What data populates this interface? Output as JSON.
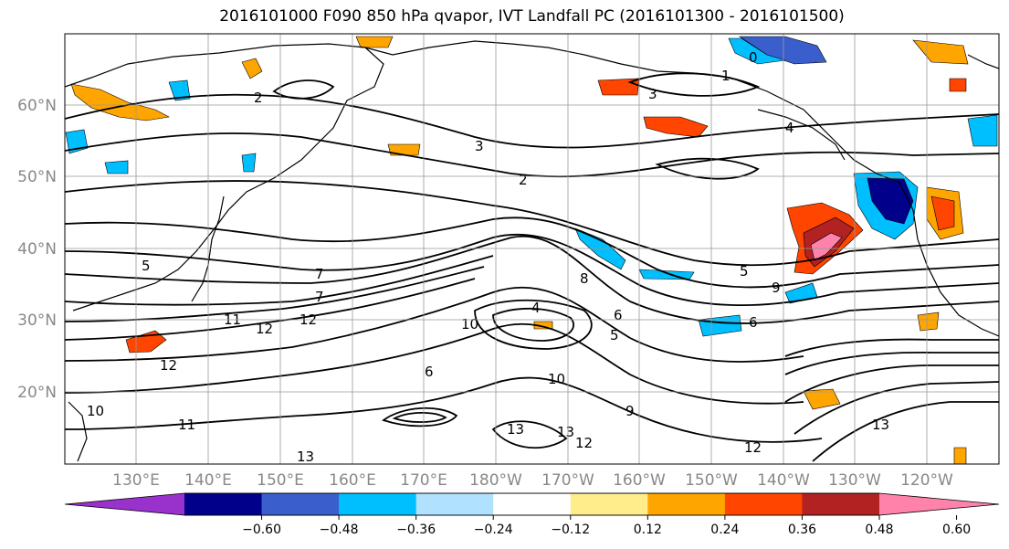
{
  "title": "2016101000 F090 850 hPa qvapor, IVT Landfall PC (2016101300 - 2016101500)",
  "lat_labels": [
    "60°N",
    "50°N",
    "40°N",
    "30°N",
    "20°N"
  ],
  "lon_labels": [
    "130°E",
    "140°E",
    "150°E",
    "160°E",
    "170°E",
    "180°W",
    "170°W",
    "160°W",
    "150°W",
    "140°W",
    "130°W",
    "120°W"
  ],
  "colorbar": {
    "colors": [
      "#9932cc",
      "#00008b",
      "#3a5fcd",
      "#00bfff",
      "#b0e2ff",
      "#ffffff",
      "#ffec8b",
      "#ffa500",
      "#ff4500",
      "#b22222",
      "#ff82ab"
    ],
    "tick_labels": [
      "−0.60",
      "−0.48",
      "−0.36",
      "−0.24",
      "−0.12",
      "0.12",
      "0.24",
      "0.36",
      "0.48",
      "0.60"
    ]
  },
  "contour_labels": [
    "2",
    "3",
    "4",
    "1",
    "0",
    "3",
    "2",
    "5",
    "7",
    "8",
    "6",
    "4",
    "5",
    "6",
    "9",
    "12",
    "10",
    "12",
    "10",
    "12",
    "9",
    "13",
    "13",
    "13",
    "12",
    "7",
    "11",
    "12",
    "5",
    "11",
    "13",
    "6",
    "10"
  ]
}
